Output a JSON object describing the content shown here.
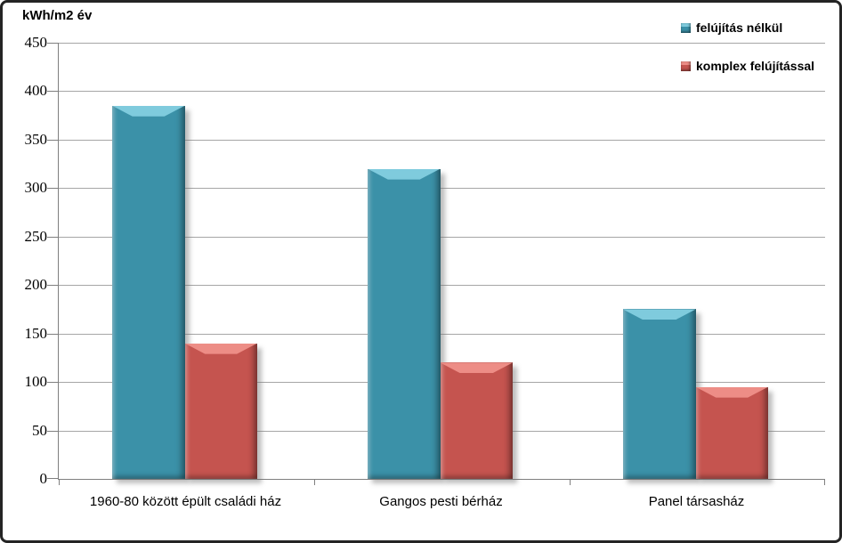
{
  "title": "kWh/m2 év",
  "chart_data": {
    "type": "bar",
    "title": "kWh/m2 év",
    "ylabel": "kWh/m2 év",
    "xlabel": "",
    "ylim": [
      0,
      450
    ],
    "ytick_step": 50,
    "yticks": [
      450,
      400,
      350,
      300,
      250,
      200,
      150,
      100,
      50,
      0
    ],
    "grid": true,
    "legend_position": "top-right",
    "categories": [
      "1960-80 között épült családi ház",
      "Gangos pesti bérház",
      "Panel társasház"
    ],
    "series": [
      {
        "name": "felújítás nélkül",
        "values": [
          385,
          320,
          175
        ],
        "color": "#3b91a8",
        "color_light": "#7fcbdd",
        "color_dark": "#26657a"
      },
      {
        "name": "komplex felújítással",
        "values": [
          140,
          120,
          95
        ],
        "color": "#c5544f",
        "color_light": "#ed8d86",
        "color_dark": "#8f3a37"
      }
    ]
  },
  "colors": {
    "gridline": "#a6a6a6",
    "axis": "#7f7f7f",
    "frame_border": "#242424",
    "background": "#ffffff",
    "text": "#000000"
  }
}
